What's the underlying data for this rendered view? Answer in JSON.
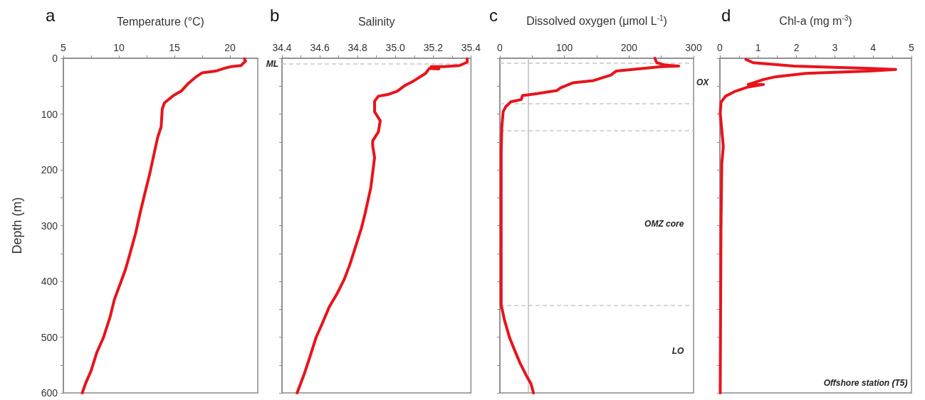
{
  "chart_data": [
    {
      "type": "line",
      "title": "a",
      "xlabel": "Temperature (°C)",
      "ylabel": "Depth (m)",
      "xlim": [
        5,
        22.5
      ],
      "xticks": [
        5,
        {
          "value": 7.5,
          "label": null
        },
        10,
        {
          "value": 12.5,
          "label": null
        },
        15,
        {
          "value": 17.5,
          "label": null
        },
        20
      ],
      "ylim": [
        600,
        0
      ],
      "yticks": [
        0,
        {
          "value": 50,
          "label": null
        },
        100,
        {
          "value": 150,
          "label": null
        },
        200,
        {
          "value": 250,
          "label": null
        },
        300,
        {
          "value": 350,
          "label": null
        },
        400,
        {
          "value": 450,
          "label": null
        },
        500,
        {
          "value": 550,
          "label": null
        },
        600
      ],
      "series": [
        {
          "color": "#e8141c",
          "x": [
            21.3,
            21.4,
            21.0,
            20.1,
            19.5,
            18.7,
            17.5,
            16.9,
            16.2,
            15.6,
            14.9,
            14.1,
            13.9,
            13.8,
            13.5,
            13.2,
            12.8,
            12.4,
            11.9,
            11.5,
            11.0,
            10.6,
            10.2,
            9.6,
            9.2,
            8.6,
            8.0,
            7.5,
            7.0,
            6.7
          ],
          "values": [
            1,
            5,
            13,
            15,
            18,
            23,
            26,
            34,
            46,
            59,
            67,
            80,
            91,
            123,
            141,
            168,
            205,
            237,
            278,
            314,
            350,
            378,
            400,
            432,
            464,
            501,
            528,
            560,
            583,
            600
          ]
        }
      ]
    },
    {
      "type": "line",
      "title": "b",
      "xlabel": "Salinity",
      "tick_labels": "x",
      "xlim": [
        34.4,
        35.4
      ],
      "xticks": [
        34.4,
        {
          "value": 34.5,
          "label": null
        },
        34.6,
        {
          "value": 34.7,
          "label": null
        },
        34.8,
        {
          "value": 34.9,
          "label": null
        },
        {
          "value": 35.0,
          "label": "35.0"
        },
        {
          "value": 35.1,
          "label": null
        },
        35.2,
        {
          "value": 35.3,
          "label": null
        },
        35.4
      ],
      "ylim": [
        600,
        0
      ],
      "yticks": [
        0,
        {
          "value": 50,
          "label": null
        },
        100,
        {
          "value": 150,
          "label": null
        },
        200,
        {
          "value": 250,
          "label": null
        },
        300,
        {
          "value": 350,
          "label": null
        },
        400,
        {
          "value": 450,
          "label": null
        },
        500,
        {
          "value": 550,
          "label": null
        },
        600
      ],
      "ref_lines": [
        {
          "axis": "y",
          "value": 10,
          "label": "ML",
          "color": "#c8c8c8",
          "line_style": "dashed"
        }
      ],
      "series": [
        {
          "color": "#e8141c",
          "x": [
            35.38,
            35.38,
            35.34,
            35.26,
            35.19,
            35.23,
            35.18,
            35.16,
            35.1,
            35.05,
            35.01,
            34.96,
            34.91,
            34.89,
            34.89,
            34.92,
            34.91,
            34.88,
            34.88,
            34.89,
            34.88,
            34.87,
            34.84,
            34.82,
            34.79,
            34.76,
            34.73,
            34.69,
            34.65,
            34.61,
            34.58,
            34.55,
            34.52,
            34.48
          ],
          "values": [
            1,
            7,
            13,
            15,
            15,
            19,
            18,
            27,
            40,
            49,
            59,
            65,
            68,
            77,
            96,
            112,
            132,
            148,
            157,
            178,
            205,
            232,
            278,
            305,
            337,
            369,
            396,
            423,
            446,
            478,
            501,
            533,
            564,
            600
          ]
        }
      ]
    },
    {
      "type": "line",
      "title": "c",
      "xlabel": "Dissolved oxygen (μmol L$^{-1}$)",
      "tick_labels": "x",
      "xlim": [
        0,
        300
      ],
      "xticks": [
        0,
        {
          "value": 50,
          "label": null
        },
        100,
        {
          "value": 150,
          "label": null
        },
        200,
        {
          "value": 250,
          "label": null
        },
        300
      ],
      "ylim": [
        600,
        0
      ],
      "yticks": [
        0,
        {
          "value": 50,
          "label": null
        },
        100,
        {
          "value": 150,
          "label": null
        },
        200,
        {
          "value": 250,
          "label": null
        },
        300,
        {
          "value": 350,
          "label": null
        },
        400,
        {
          "value": 450,
          "label": null
        },
        500,
        {
          "value": 550,
          "label": null
        },
        600
      ],
      "ref_lines": [
        {
          "axis": "y",
          "value": 8,
          "color": "#c8c8c8",
          "line_style": "dashed"
        },
        {
          "axis": "y",
          "value": 81,
          "color": "#c8c8c8",
          "line_style": "dashed"
        },
        {
          "axis": "y",
          "value": 129,
          "color": "#c8c8c8",
          "line_style": "dashed"
        },
        {
          "axis": "y",
          "value": 443,
          "color": "#c8c8c8",
          "line_style": "dashed"
        },
        {
          "axis": "x",
          "value": 44,
          "color": "#bbbbbb",
          "line_style": "solid"
        }
      ],
      "annotations": [
        "OX",
        "OMZ core",
        "LO"
      ],
      "series": [
        {
          "color": "#e8141c",
          "x": [
            240,
            243,
            255,
            277,
            251,
            180,
            172,
            145,
            113,
            94,
            88,
            54,
            35,
            33,
            17,
            9,
            5,
            3,
            2,
            2,
            2,
            2,
            7,
            15,
            23,
            31,
            41,
            48,
            52
          ],
          "values": [
            0,
            8,
            12,
            14,
            15,
            23,
            30,
            40,
            44,
            53,
            58,
            64,
            67,
            74,
            78,
            87,
            96,
            124,
            169,
            260,
            351,
            442,
            469,
            501,
            524,
            546,
            569,
            583,
            600
          ]
        }
      ]
    },
    {
      "type": "line",
      "title": "d",
      "xlabel": "Chl-a (mg m$^{-3}$)",
      "tick_labels": "x",
      "xlim": [
        0,
        5
      ],
      "xticks": [
        0,
        {
          "value": 0.5,
          "label": null
        },
        1,
        {
          "value": 1.5,
          "label": null
        },
        2,
        {
          "value": 2.5,
          "label": null
        },
        3,
        {
          "value": 3.5,
          "label": null
        },
        4,
        {
          "value": 4.5,
          "label": null
        },
        5
      ],
      "ylim": [
        600,
        0
      ],
      "yticks": [
        0,
        {
          "value": 50,
          "label": null
        },
        100,
        {
          "value": 150,
          "label": null
        },
        200,
        {
          "value": 250,
          "label": null
        },
        300,
        {
          "value": 350,
          "label": null
        },
        400,
        {
          "value": 450,
          "label": null
        },
        500,
        {
          "value": 550,
          "label": null
        },
        600
      ],
      "annotations": [
        "Offshore station (T5)"
      ],
      "series": [
        {
          "color": "#e8141c",
          "x": [
            0.68,
            0.87,
            1.93,
            3.9,
            4.59,
            3.9,
            2.25,
            1.47,
            1.14,
            0.87,
            0.74,
            1.14,
            0.71,
            0.41,
            0.15,
            0.03,
            0.01,
            0.09,
            0.05,
            0.03,
            0.02,
            0.01
          ],
          "values": [
            2,
            8,
            14,
            18,
            20,
            23,
            27,
            33,
            38,
            44,
            47,
            47,
            52,
            59,
            68,
            79,
            99,
            158,
            190,
            307,
            443,
            600
          ]
        }
      ]
    }
  ]
}
